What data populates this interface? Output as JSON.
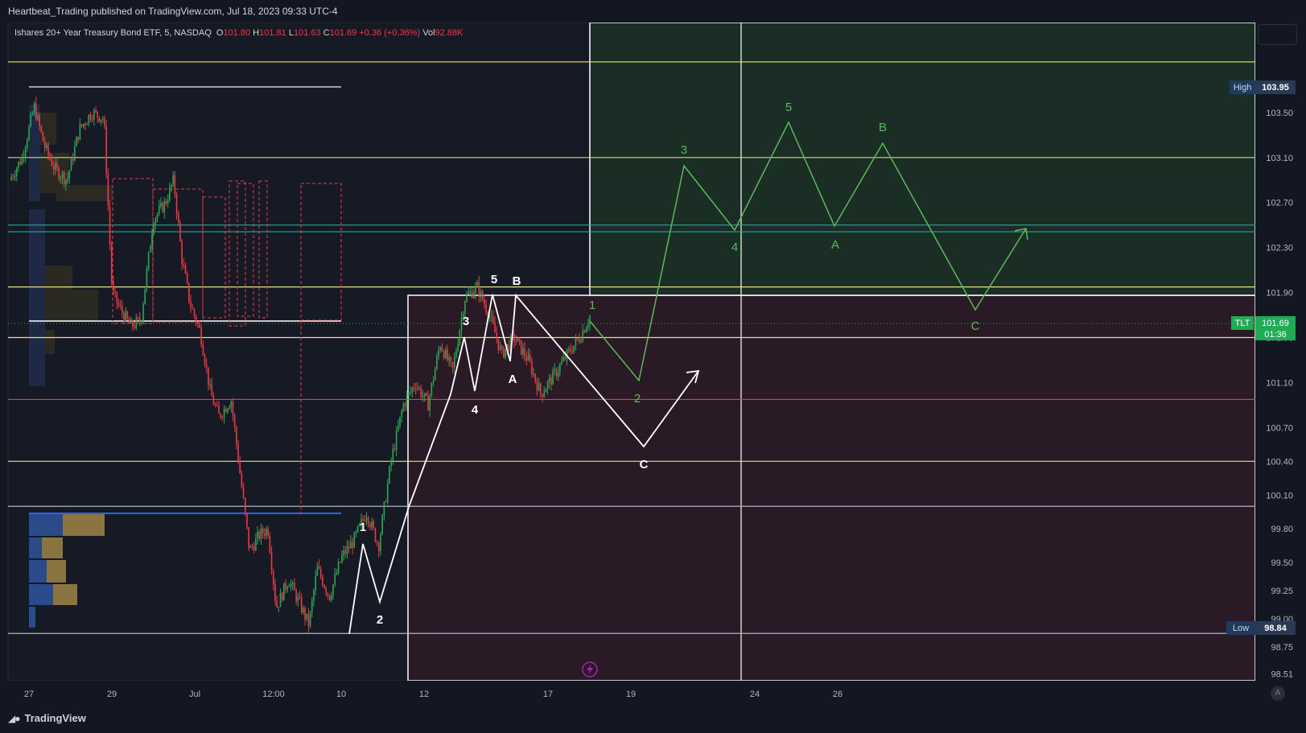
{
  "header": {
    "publish_line": "Heartbeat_Trading published on TradingView.com, Jul 18, 2023 09:33 UTC-4"
  },
  "legend": {
    "symbol": "Ishares 20+ Year Treasury Bond ETF, 5, NASDAQ",
    "open_label": "O",
    "open": "101.80",
    "high_label": "H",
    "high": "101.81",
    "low_label": "L",
    "low": "101.63",
    "close_label": "C",
    "close": "101.69",
    "change": "+0.36 (+0.36%)",
    "vol_label": "Vol",
    "vol": "92.88K"
  },
  "footer": {
    "brand": "TradingView"
  },
  "autoscale_label": "A",
  "colors": {
    "background": "#131722",
    "candle_up": "#22ab55",
    "candle_down": "#f23645",
    "white_wave": "#ffffff",
    "green_wave": "#5cb85c",
    "yellow_level": "#e8e27a",
    "red_zone": "#3a1a26",
    "green_zone": "#1c3a2a",
    "tlt_badge": "#22ab55",
    "volume_profile_blue": "#2a4a8a",
    "volume_profile_gold": "#a08a4a"
  },
  "chart_data": {
    "type": "candlestick",
    "symbol": "TLT",
    "timeframe": "5",
    "exchange": "NASDAQ",
    "y_range": [
      98.45,
      104.3
    ],
    "price_axis_ticks": [
      "103.50",
      "103.10",
      "102.70",
      "102.30",
      "101.90",
      "101.50",
      "101.10",
      "100.70",
      "100.40",
      "100.10",
      "99.80",
      "99.50",
      "99.25",
      "99.00",
      "98.75",
      "98.51"
    ],
    "x_axis_ticks": [
      "27",
      "29",
      "Jul",
      "12:00",
      "10",
      "12",
      "17",
      "19",
      "24",
      "26"
    ],
    "badges": {
      "high": {
        "label": "High",
        "value": "103.95"
      },
      "low": {
        "label": "Low",
        "value": "98.84"
      },
      "last": {
        "label": "TLT",
        "value": "101.69",
        "countdown": "01:36"
      }
    },
    "horizontal_levels": [
      {
        "price": 103.95,
        "color": "#e8e27a"
      },
      {
        "price": 103.1,
        "color": "#c8d4a0"
      },
      {
        "price": 102.5,
        "color": "#26a69a"
      },
      {
        "price": 102.44,
        "color": "#26a69a"
      },
      {
        "price": 101.95,
        "color": "#e8e27a"
      },
      {
        "price": 101.5,
        "color": "#e8e27a"
      },
      {
        "price": 100.95,
        "color": "#f23645"
      },
      {
        "price": 100.4,
        "color": "#e8e27a"
      },
      {
        "price": 100.0,
        "color": "#b2b5be"
      },
      {
        "price": 98.87,
        "color": "#b2b5be"
      }
    ],
    "price_path": [
      [
        0,
        102.9
      ],
      [
        0.6,
        103.1
      ],
      [
        1.2,
        103.55
      ],
      [
        1.7,
        103.2
      ],
      [
        2.2,
        103.0
      ],
      [
        2.8,
        102.9
      ],
      [
        3.4,
        103.35
      ],
      [
        4.0,
        103.5
      ],
      [
        4.6,
        103.45
      ],
      [
        5.0,
        101.9
      ],
      [
        5.4,
        101.75
      ],
      [
        5.9,
        101.6
      ],
      [
        6.4,
        101.65
      ],
      [
        7.0,
        102.55
      ],
      [
        7.6,
        102.7
      ],
      [
        8.0,
        102.9
      ],
      [
        8.4,
        102.2
      ],
      [
        8.8,
        101.8
      ],
      [
        9.3,
        101.55
      ],
      [
        9.8,
        101.0
      ],
      [
        10.2,
        100.8
      ],
      [
        10.8,
        100.95
      ],
      [
        11.2,
        100.35
      ],
      [
        11.7,
        99.6
      ],
      [
        12.2,
        99.75
      ],
      [
        12.6,
        99.8
      ],
      [
        13.0,
        99.1
      ],
      [
        13.6,
        99.35
      ],
      [
        14.1,
        99.15
      ],
      [
        14.6,
        98.95
      ],
      [
        15.0,
        99.45
      ],
      [
        15.6,
        99.2
      ],
      [
        16.2,
        99.55
      ],
      [
        16.8,
        99.7
      ],
      [
        17.4,
        99.95
      ],
      [
        18.0,
        99.65
      ],
      [
        18.6,
        100.4
      ],
      [
        19.2,
        100.9
      ],
      [
        19.8,
        101.1
      ],
      [
        20.4,
        100.9
      ],
      [
        21.0,
        101.45
      ],
      [
        21.6,
        101.2
      ],
      [
        22.2,
        101.85
      ],
      [
        22.8,
        101.95
      ],
      [
        23.4,
        101.7
      ],
      [
        24.0,
        101.35
      ],
      [
        24.6,
        101.5
      ],
      [
        25.3,
        101.3
      ],
      [
        25.9,
        101.0
      ],
      [
        26.5,
        101.15
      ],
      [
        27.2,
        101.35
      ],
      [
        27.8,
        101.5
      ],
      [
        28.3,
        101.69
      ]
    ],
    "zones": [
      {
        "type": "red",
        "from": "12",
        "to": "right edge",
        "top": 101.95,
        "bottom": 98.45
      },
      {
        "type": "green",
        "from": "Jul 18",
        "to": "right edge",
        "top": 104.3,
        "bottom": 101.95
      }
    ],
    "wave_labels_white": [
      "1",
      "2",
      "3",
      "4",
      "5",
      "A",
      "B",
      "C"
    ],
    "wave_labels_green": [
      "1",
      "2",
      "3",
      "4",
      "5",
      "A",
      "B",
      "C"
    ]
  }
}
